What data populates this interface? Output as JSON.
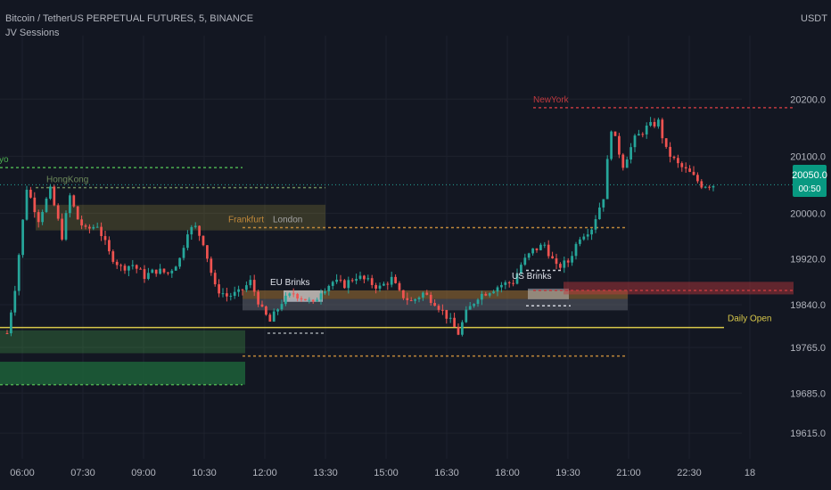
{
  "header": {
    "symbol_line": "Bitcoin / TetherUS PERPETUAL FUTURES, 5, BINANCE",
    "indicator_line": "JV Sessions",
    "currency": "USDT"
  },
  "price_tag": {
    "price": "20050.0",
    "countdown": "00:50"
  },
  "colors": {
    "background": "#131722",
    "up": "#26a69a",
    "down": "#ef5350",
    "tokyo": "#4caf50",
    "hongkong": "#6d8a5a",
    "frankfurt": "#c0883a",
    "london": "#a3a3a3",
    "newyork": "#c0393f",
    "daily_open": "#d8c84a",
    "price_line": "#26a69a"
  },
  "chart_data": {
    "type": "candlestick",
    "symbol": "Bitcoin / TetherUS PERPETUAL FUTURES",
    "timeframe": "5",
    "exchange": "BINANCE",
    "x_ticks": [
      "06:00",
      "07:30",
      "09:00",
      "10:30",
      "12:00",
      "13:30",
      "15:00",
      "16:30",
      "18:00",
      "19:30",
      "21:00",
      "22:30",
      "18"
    ],
    "y_ticks": [
      20200.0,
      20100.0,
      20000.0,
      19920.0,
      19840.0,
      19765.0,
      19685.0,
      19615.0
    ],
    "y_tick_labels": [
      "20200.0",
      "20100.0",
      "20000.0",
      "19920.0",
      "19840.0",
      "19765.0",
      "19685.0",
      "19615.0"
    ],
    "ylim": [
      19570,
      20280
    ],
    "current_price": 20050.0,
    "daily_open": 19800,
    "price_path": [
      [
        0,
        19790
      ],
      [
        2,
        19870
      ],
      [
        5,
        20045
      ],
      [
        8,
        19990
      ],
      [
        11,
        20040
      ],
      [
        14,
        19960
      ],
      [
        16,
        20030
      ],
      [
        18,
        19990
      ],
      [
        20,
        19970
      ],
      [
        23,
        19980
      ],
      [
        26,
        19930
      ],
      [
        29,
        19905
      ],
      [
        32,
        19910
      ],
      [
        35,
        19890
      ],
      [
        38,
        19900
      ],
      [
        41,
        19895
      ],
      [
        44,
        19920
      ],
      [
        46,
        19970
      ],
      [
        48,
        19975
      ],
      [
        50,
        19950
      ],
      [
        53,
        19870
      ],
      [
        56,
        19855
      ],
      [
        59,
        19860
      ],
      [
        62,
        19880
      ],
      [
        65,
        19830
      ],
      [
        67,
        19810
      ],
      [
        70,
        19845
      ],
      [
        73,
        19860
      ],
      [
        76,
        19850
      ],
      [
        78,
        19840
      ],
      [
        80,
        19865
      ],
      [
        83,
        19880
      ],
      [
        86,
        19875
      ],
      [
        89,
        19890
      ],
      [
        92,
        19880
      ],
      [
        95,
        19870
      ],
      [
        98,
        19885
      ],
      [
        100,
        19860
      ],
      [
        103,
        19845
      ],
      [
        106,
        19860
      ],
      [
        109,
        19845
      ],
      [
        112,
        19820
      ],
      [
        115,
        19790
      ],
      [
        117,
        19825
      ],
      [
        120,
        19855
      ],
      [
        123,
        19865
      ],
      [
        126,
        19875
      ],
      [
        129,
        19880
      ],
      [
        131,
        19910
      ],
      [
        134,
        19935
      ],
      [
        137,
        19945
      ],
      [
        140,
        19905
      ],
      [
        143,
        19915
      ],
      [
        146,
        19960
      ],
      [
        149,
        19975
      ],
      [
        152,
        20030
      ],
      [
        154,
        20150
      ],
      [
        157,
        20085
      ],
      [
        160,
        20130
      ],
      [
        163,
        20150
      ],
      [
        166,
        20160
      ],
      [
        168,
        20110
      ],
      [
        171,
        20085
      ],
      [
        174,
        20070
      ],
      [
        177,
        20050
      ]
    ],
    "x_max": 180,
    "sessions": [
      {
        "name": "Tokyo",
        "label": "kyo",
        "high": 20080,
        "low": 19700
      },
      {
        "name": "HongKong",
        "label": "HongKong",
        "high": 20045
      },
      {
        "name": "Frankfurt",
        "label": "Frankfurt",
        "high": 19975,
        "low": 19750
      },
      {
        "name": "London",
        "label": "London",
        "high": 19975
      },
      {
        "name": "New York",
        "label": "NewYork",
        "high": 20185,
        "low": 19865
      },
      {
        "name": "Daily Open",
        "label": "Daily Open",
        "level": 19800
      }
    ],
    "annotations": [
      {
        "label": "EU Brinks",
        "high": 19865,
        "low": 19845
      },
      {
        "label": "US Brinks",
        "high": 19890,
        "low": 19845
      }
    ]
  }
}
